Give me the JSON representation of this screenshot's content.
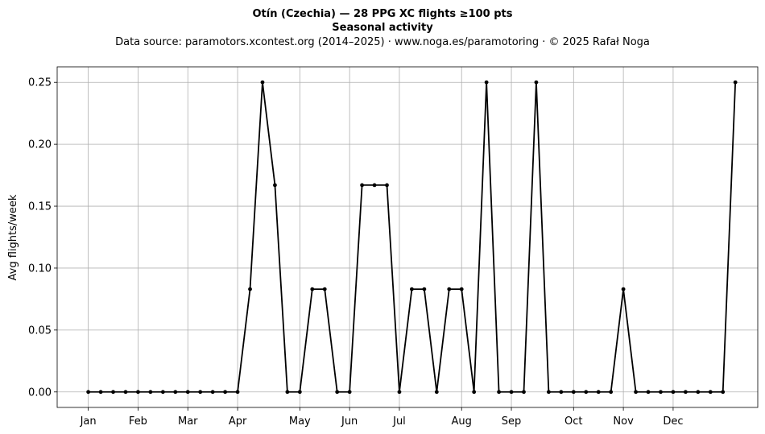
{
  "chart_data": {
    "type": "line",
    "title": "Otín (Czechia)  —  28 PPG XC flights ≥100 pts",
    "subtitle": "Seasonal activity",
    "source_line": "Data source: paramotors.xcontest.org (2014–2025)  ·  www.noga.es/paramotoring  ·  © 2025 Rafał Noga",
    "xlabel": "",
    "ylabel": "Avg flights/week",
    "x": [
      1,
      2,
      3,
      4,
      5,
      6,
      7,
      8,
      9,
      10,
      11,
      12,
      13,
      14,
      15,
      16,
      17,
      18,
      19,
      20,
      21,
      22,
      23,
      24,
      25,
      26,
      27,
      28,
      29,
      30,
      31,
      32,
      33,
      34,
      35,
      36,
      37,
      38,
      39,
      40,
      41,
      42,
      43,
      44,
      45,
      46,
      47,
      48,
      49,
      50,
      51,
      52,
      53
    ],
    "xlim": [
      -1.5,
      54.8
    ],
    "month_ticks": [
      {
        "label": "Jan",
        "x": 1
      },
      {
        "label": "Feb",
        "x": 5
      },
      {
        "label": "Mar",
        "x": 9
      },
      {
        "label": "Apr",
        "x": 13
      },
      {
        "label": "May",
        "x": 18
      },
      {
        "label": "Jun",
        "x": 22
      },
      {
        "label": "Jul",
        "x": 26
      },
      {
        "label": "Aug",
        "x": 31
      },
      {
        "label": "Sep",
        "x": 35
      },
      {
        "label": "Oct",
        "x": 40
      },
      {
        "label": "Nov",
        "x": 44
      },
      {
        "label": "Dec",
        "x": 48
      }
    ],
    "y_ticks": [
      "0.00",
      "0.05",
      "0.10",
      "0.15",
      "0.20",
      "0.25"
    ],
    "ylim": [
      -0.0125,
      0.2625
    ],
    "grid": true,
    "series": [
      {
        "values": [
          0,
          0,
          0,
          0,
          0,
          0,
          0,
          0,
          0,
          0,
          0,
          0,
          0,
          0.083,
          0.25,
          0.167,
          0,
          0,
          0.083,
          0.083,
          0,
          0,
          0.167,
          0.167,
          0.167,
          0,
          0.083,
          0.083,
          0,
          0.083,
          0.083,
          0,
          0.25,
          0,
          0,
          0,
          0.25,
          0,
          0,
          0,
          0,
          0,
          0,
          0.083,
          0,
          0,
          0,
          0,
          0,
          0,
          0,
          0,
          0.25
        ],
        "color": "#000000"
      }
    ]
  }
}
